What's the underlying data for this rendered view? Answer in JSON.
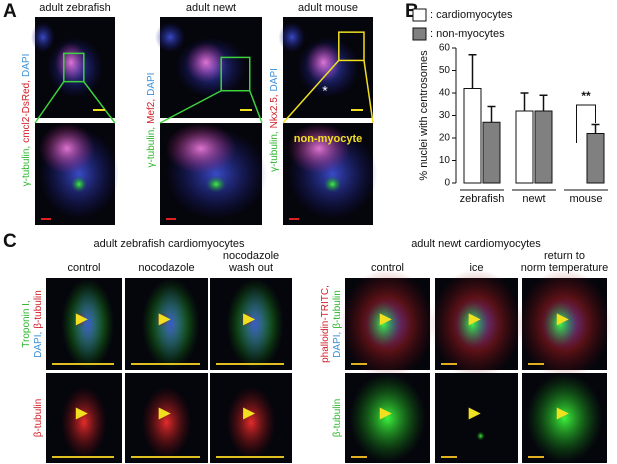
{
  "panel_a": {
    "letter": "A",
    "columns": [
      {
        "title": "adult zebrafish",
        "label_parts": [
          {
            "text": "γ-tubulin,",
            "color": "#2db52d"
          },
          {
            "text": "cmcl2-DsRed,",
            "color": "#d0202a"
          },
          {
            "text": "DAPI",
            "color": "#3a8fd8"
          }
        ]
      },
      {
        "title": "adult newt",
        "label_parts": [
          {
            "text": "γ-tubulin,",
            "color": "#2db52d"
          },
          {
            "text": "Mef2,",
            "color": "#d0202a"
          },
          {
            "text": "DAPI",
            "color": "#3a8fd8"
          }
        ]
      },
      {
        "title": "adult mouse",
        "label_parts": [
          {
            "text": "γ-tubulin,",
            "color": "#2db52d"
          },
          {
            "text": "Nkx2.5,",
            "color": "#d0202a"
          },
          {
            "text": "DAPI",
            "color": "#3a8fd8"
          }
        ]
      }
    ],
    "mouse_marker": "*",
    "mouse_annotation": "non-myocyte"
  },
  "panel_b": {
    "letter": "B"
  },
  "chart_data": {
    "type": "bar",
    "y_label": "% nuclei with centrosomes",
    "categories": [
      "zebrafish",
      "newt",
      "mouse"
    ],
    "series": [
      {
        "name": ": cardiomyocytes",
        "color": "#ffffff",
        "values": [
          42,
          32,
          0
        ],
        "errors": [
          15,
          8,
          null
        ]
      },
      {
        "name": ": non-myocytes",
        "color": "#808080",
        "values": [
          27,
          32,
          22
        ],
        "errors": [
          7,
          7,
          4
        ]
      }
    ],
    "ylim": [
      0,
      60
    ],
    "yticks": [
      0,
      10,
      20,
      30,
      40,
      50,
      60
    ],
    "annotation": "**"
  },
  "panel_c": {
    "letter": "C",
    "groups": [
      {
        "title": "adult zebrafish cardiomyocytes",
        "columns": [
          [
            "control"
          ],
          [
            "nocodazole"
          ],
          [
            "nocodazole",
            "wash out"
          ]
        ],
        "row_labels": [
          [
            [
              {
                "text": "Troponin I,",
                "color": "#2db52d"
              }
            ],
            [
              {
                "text": "DAPI,",
                "color": "#3a8fd8"
              },
              {
                "text": "β-tubulin",
                "color": "#d0202a"
              }
            ]
          ],
          [
            [
              {
                "text": "β-tubulin",
                "color": "#d0202a"
              }
            ]
          ]
        ]
      },
      {
        "title": "adult newt cardiomyocytes",
        "columns": [
          [
            "control"
          ],
          [
            "ice"
          ],
          [
            "return to",
            "norm temperature"
          ]
        ],
        "row_labels": [
          [
            [
              {
                "text": "phalloidin-TRITC,",
                "color": "#d0202a"
              }
            ],
            [
              {
                "text": "DAPI,",
                "color": "#3a8fd8"
              },
              {
                "text": "β-tubulin",
                "color": "#2db52d"
              }
            ]
          ],
          [
            [
              {
                "text": "β-tubulin",
                "color": "#2db52d"
              }
            ]
          ]
        ]
      }
    ]
  }
}
